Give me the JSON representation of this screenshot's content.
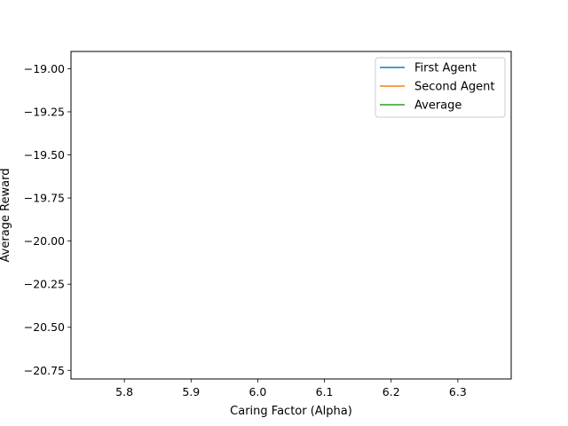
{
  "chart_data": {
    "type": "line",
    "title": "",
    "xlabel": "Caring Factor (Alpha)",
    "ylabel": "Average Reward",
    "xlim": [
      5.72,
      6.38
    ],
    "ylim": [
      -20.8,
      -18.9
    ],
    "xticks": [
      5.8,
      5.9,
      6.0,
      6.1,
      6.2,
      6.3
    ],
    "xtick_labels": [
      "5.8",
      "5.9",
      "6.0",
      "6.1",
      "6.2",
      "6.3"
    ],
    "yticks": [
      -19.0,
      -19.25,
      -19.5,
      -19.75,
      -20.0,
      -20.25,
      -20.5,
      -20.75
    ],
    "ytick_labels": [
      "−19.00",
      "−19.25",
      "−19.50",
      "−19.75",
      "−20.00",
      "−20.25",
      "−20.50",
      "−20.75"
    ],
    "grid": false,
    "legend_position": "top-right",
    "series": [
      {
        "name": "First Agent",
        "color": "#1f77b4",
        "x": [],
        "y": []
      },
      {
        "name": "Second Agent",
        "color": "#ff7f0e",
        "x": [],
        "y": []
      },
      {
        "name": "Average",
        "color": "#2ca02c",
        "x": [],
        "y": []
      }
    ]
  }
}
